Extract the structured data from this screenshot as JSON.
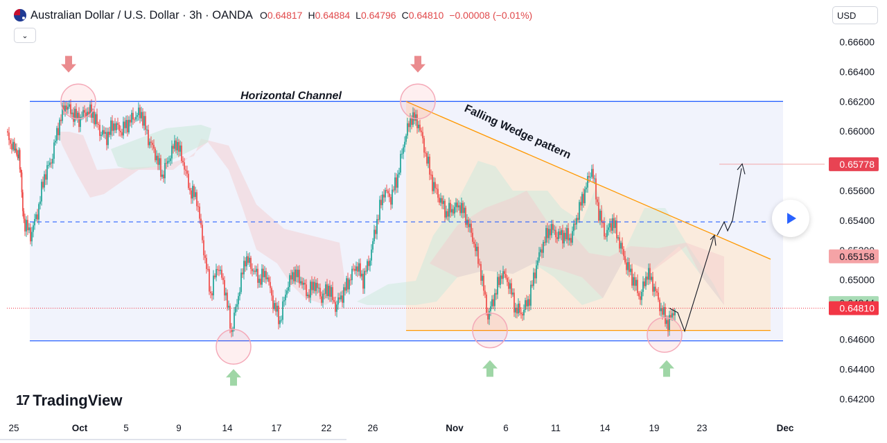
{
  "header": {
    "symbol": "Australian Dollar / U.S. Dollar · 3h · OANDA",
    "o_label": "O",
    "o_value": "0.64817",
    "h_label": "H",
    "h_value": "0.64884",
    "l_label": "L",
    "l_value": "0.64796",
    "c_label": "C",
    "c_value": "0.64810",
    "change": "−0.00008 (−0.01%)"
  },
  "toolbar": {
    "collapse_icon": "chevron-down-icon",
    "currency": "USD",
    "play_icon": "play-icon"
  },
  "logo": {
    "mark": "17",
    "text": "TradingView"
  },
  "colors": {
    "up": "#26a69a",
    "down": "#ef5350",
    "channel": "#2962ff",
    "wedge": "#ff9800",
    "price_label": "#f23645",
    "green_label": "#089981",
    "target_label": "#e84353",
    "level_label": "#f5a3a6"
  },
  "chart_data": {
    "type": "candlestick",
    "instrument": "AUD/USD",
    "timeframe": "3h",
    "ylim": [
      0.641,
      0.668
    ],
    "y_ticks": [
      "0.66600",
      "0.66400",
      "0.66200",
      "0.66000",
      "0.65800",
      "0.65600",
      "0.65400",
      "0.65200",
      "0.65000",
      "0.64800",
      "0.64600",
      "0.64400",
      "0.64200"
    ],
    "x_ticks": [
      "25",
      "Oct",
      "5",
      "9",
      "14",
      "17",
      "22",
      "26",
      "Nov",
      "6",
      "11",
      "14",
      "19",
      "23",
      "Dec"
    ],
    "price_labels": [
      {
        "text": "0.65778",
        "y": 0.65778,
        "kind": "target"
      },
      {
        "text": "0.65158",
        "y": 0.65158,
        "kind": "level"
      },
      {
        "text": "0.64844",
        "y": 0.64844,
        "kind": "green"
      },
      {
        "text": "0.64810",
        "y": 0.6481,
        "kind": "last"
      }
    ],
    "annotations": {
      "channel_label": "Horizontal Channel",
      "wedge_label": "Falling Wedge pattern",
      "channel_top": 0.662,
      "channel_bottom": 0.6459,
      "channel_mid": 0.6539,
      "target_level": 0.65778
    }
  }
}
